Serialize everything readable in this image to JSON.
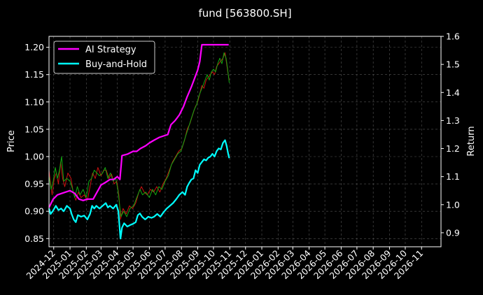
{
  "chart_data": {
    "type": "line",
    "title": "fund [563800.SH]",
    "ylabel_left": "Price",
    "ylabel_right": "Return",
    "ylim_left": [
      0.835,
      1.22
    ],
    "ylim_right": [
      0.85,
      1.6
    ],
    "yticks_left": [
      "0.85",
      "0.90",
      "0.95",
      "1.00",
      "1.05",
      "1.10",
      "1.15",
      "1.20"
    ],
    "yticks_right": [
      "0.9",
      "1.0",
      "1.1",
      "1.2",
      "1.3",
      "1.4",
      "1.5",
      "1.6"
    ],
    "xlim": [
      "2024-11-22",
      "2026-12-08"
    ],
    "xticks": [
      "2024-12",
      "2025-01",
      "2025-02",
      "2025-03",
      "2025-04",
      "2025-05",
      "2025-06",
      "2025-07",
      "2025-08",
      "2025-09",
      "2025-10",
      "2025-11",
      "2025-12",
      "2026-01",
      "2026-02",
      "2026-03",
      "2026-04",
      "2026-05",
      "2026-06",
      "2026-07",
      "2026-08",
      "2026-09",
      "2026-10",
      "2026-11"
    ],
    "grid": true,
    "legend_placement": "top-left",
    "series": [
      {
        "name": "AI Strategy",
        "axis": "right",
        "color": "#ff00ff",
        "points": [
          [
            "2024-11-22",
            0.99
          ],
          [
            "2024-11-30",
            1.02
          ],
          [
            "2024-12-08",
            1.035
          ],
          [
            "2024-12-16",
            1.04
          ],
          [
            "2024-12-24",
            1.045
          ],
          [
            "2025-01-01",
            1.05
          ],
          [
            "2025-01-10",
            1.04
          ],
          [
            "2025-01-18",
            1.02
          ],
          [
            "2025-01-26",
            1.015
          ],
          [
            "2025-02-03",
            1.02
          ],
          [
            "2025-02-14",
            1.02
          ],
          [
            "2025-02-20",
            1.04
          ],
          [
            "2025-03-01",
            1.07
          ],
          [
            "2025-03-10",
            1.08
          ],
          [
            "2025-03-18",
            1.09
          ],
          [
            "2025-03-25",
            1.09
          ],
          [
            "2025-04-01",
            1.1
          ],
          [
            "2025-04-06",
            1.09
          ],
          [
            "2025-04-10",
            1.175
          ],
          [
            "2025-04-20",
            1.18
          ],
          [
            "2025-05-01",
            1.19
          ],
          [
            "2025-05-08",
            1.19
          ],
          [
            "2025-05-15",
            1.2
          ],
          [
            "2025-05-25",
            1.21
          ],
          [
            "2025-06-01",
            1.22
          ],
          [
            "2025-06-10",
            1.23
          ],
          [
            "2025-06-20",
            1.24
          ],
          [
            "2025-06-28",
            1.245
          ],
          [
            "2025-07-06",
            1.25
          ],
          [
            "2025-07-12",
            1.285
          ],
          [
            "2025-07-20",
            1.3
          ],
          [
            "2025-07-28",
            1.32
          ],
          [
            "2025-08-05",
            1.35
          ],
          [
            "2025-08-12",
            1.385
          ],
          [
            "2025-08-20",
            1.42
          ],
          [
            "2025-08-28",
            1.46
          ],
          [
            "2025-09-01",
            1.48
          ],
          [
            "2025-09-05",
            1.51
          ],
          [
            "2025-09-09",
            1.57
          ],
          [
            "2025-09-20",
            1.57
          ],
          [
            "2025-10-01",
            1.57
          ],
          [
            "2025-10-10",
            1.57
          ],
          [
            "2025-10-20",
            1.57
          ],
          [
            "2025-10-30",
            1.57
          ]
        ]
      },
      {
        "name": "Buy-and-Hold",
        "axis": "left",
        "color": "#00ffff",
        "points": [
          [
            "2024-11-22",
            0.905
          ],
          [
            "2024-11-25",
            0.895
          ],
          [
            "2024-11-29",
            0.9
          ],
          [
            "2024-12-05",
            0.91
          ],
          [
            "2024-12-10",
            0.902
          ],
          [
            "2024-12-15",
            0.905
          ],
          [
            "2024-12-20",
            0.9
          ],
          [
            "2024-12-26",
            0.91
          ],
          [
            "2025-01-01",
            0.905
          ],
          [
            "2025-01-04",
            0.895
          ],
          [
            "2025-01-08",
            0.885
          ],
          [
            "2025-01-12",
            0.88
          ],
          [
            "2025-01-16",
            0.893
          ],
          [
            "2025-01-22",
            0.89
          ],
          [
            "2025-01-28",
            0.892
          ],
          [
            "2025-02-03",
            0.885
          ],
          [
            "2025-02-08",
            0.895
          ],
          [
            "2025-02-12",
            0.91
          ],
          [
            "2025-02-16",
            0.905
          ],
          [
            "2025-02-20",
            0.91
          ],
          [
            "2025-02-26",
            0.905
          ],
          [
            "2025-03-04",
            0.91
          ],
          [
            "2025-03-10",
            0.915
          ],
          [
            "2025-03-14",
            0.907
          ],
          [
            "2025-03-18",
            0.91
          ],
          [
            "2025-03-24",
            0.905
          ],
          [
            "2025-03-30",
            0.912
          ],
          [
            "2025-04-03",
            0.9
          ],
          [
            "2025-04-07",
            0.85
          ],
          [
            "2025-04-10",
            0.87
          ],
          [
            "2025-04-14",
            0.878
          ],
          [
            "2025-04-20",
            0.872
          ],
          [
            "2025-04-26",
            0.875
          ],
          [
            "2025-05-01",
            0.877
          ],
          [
            "2025-05-06",
            0.88
          ],
          [
            "2025-05-10",
            0.893
          ],
          [
            "2025-05-14",
            0.896
          ],
          [
            "2025-05-18",
            0.89
          ],
          [
            "2025-05-24",
            0.885
          ],
          [
            "2025-05-30",
            0.89
          ],
          [
            "2025-06-05",
            0.888
          ],
          [
            "2025-06-10",
            0.89
          ],
          [
            "2025-06-16",
            0.895
          ],
          [
            "2025-06-22",
            0.89
          ],
          [
            "2025-06-28",
            0.898
          ],
          [
            "2025-07-04",
            0.905
          ],
          [
            "2025-07-10",
            0.91
          ],
          [
            "2025-07-16",
            0.915
          ],
          [
            "2025-07-22",
            0.922
          ],
          [
            "2025-07-28",
            0.93
          ],
          [
            "2025-08-03",
            0.935
          ],
          [
            "2025-08-08",
            0.93
          ],
          [
            "2025-08-12",
            0.945
          ],
          [
            "2025-08-16",
            0.952
          ],
          [
            "2025-08-20",
            0.958
          ],
          [
            "2025-08-24",
            0.96
          ],
          [
            "2025-08-28",
            0.975
          ],
          [
            "2025-09-01",
            0.97
          ],
          [
            "2025-09-05",
            0.985
          ],
          [
            "2025-09-09",
            0.99
          ],
          [
            "2025-09-13",
            0.995
          ],
          [
            "2025-09-17",
            0.993
          ],
          [
            "2025-09-21",
            0.998
          ],
          [
            "2025-09-25",
            1.0
          ],
          [
            "2025-09-29",
            1.005
          ],
          [
            "2025-10-03",
            1.0
          ],
          [
            "2025-10-07",
            1.01
          ],
          [
            "2025-10-11",
            1.015
          ],
          [
            "2025-10-15",
            1.013
          ],
          [
            "2025-10-19",
            1.025
          ],
          [
            "2025-10-23",
            1.03
          ],
          [
            "2025-10-26",
            1.02
          ],
          [
            "2025-10-29",
            1.005
          ],
          [
            "2025-10-31",
            0.997
          ]
        ]
      },
      {
        "name": "",
        "axis": "left",
        "color": "#cc1111",
        "style": "thin",
        "points": [
          [
            "2024-11-22",
            0.975
          ],
          [
            "2024-11-25",
            0.95
          ],
          [
            "2024-11-28",
            0.93
          ],
          [
            "2024-12-02",
            0.96
          ],
          [
            "2024-12-06",
            0.97
          ],
          [
            "2024-12-10",
            0.95
          ],
          [
            "2024-12-14",
            0.99
          ],
          [
            "2024-12-18",
            0.96
          ],
          [
            "2024-12-22",
            0.945
          ],
          [
            "2024-12-28",
            0.97
          ],
          [
            "2025-01-03",
            0.96
          ],
          [
            "2025-01-07",
            0.935
          ],
          [
            "2025-01-12",
            0.92
          ],
          [
            "2025-01-17",
            0.935
          ],
          [
            "2025-01-22",
            0.925
          ],
          [
            "2025-01-28",
            0.93
          ],
          [
            "2025-02-03",
            0.92
          ],
          [
            "2025-02-08",
            0.945
          ],
          [
            "2025-02-13",
            0.97
          ],
          [
            "2025-02-18",
            0.96
          ],
          [
            "2025-02-23",
            0.98
          ],
          [
            "2025-03-01",
            0.965
          ],
          [
            "2025-03-06",
            0.975
          ],
          [
            "2025-03-11",
            0.975
          ],
          [
            "2025-03-16",
            0.96
          ],
          [
            "2025-03-21",
            0.968
          ],
          [
            "2025-03-26",
            0.95
          ],
          [
            "2025-03-31",
            0.955
          ],
          [
            "2025-04-04",
            0.93
          ],
          [
            "2025-04-07",
            0.885
          ],
          [
            "2025-04-12",
            0.905
          ],
          [
            "2025-04-18",
            0.895
          ],
          [
            "2025-04-24",
            0.91
          ],
          [
            "2025-04-30",
            0.905
          ],
          [
            "2025-05-06",
            0.915
          ],
          [
            "2025-05-12",
            0.935
          ],
          [
            "2025-05-17",
            0.945
          ],
          [
            "2025-05-22",
            0.935
          ],
          [
            "2025-05-28",
            0.93
          ],
          [
            "2025-06-03",
            0.94
          ],
          [
            "2025-06-09",
            0.935
          ],
          [
            "2025-06-15",
            0.945
          ],
          [
            "2025-06-21",
            0.935
          ],
          [
            "2025-06-27",
            0.95
          ],
          [
            "2025-07-03",
            0.96
          ],
          [
            "2025-07-09",
            0.975
          ],
          [
            "2025-07-15",
            0.99
          ],
          [
            "2025-07-21",
            1.0
          ],
          [
            "2025-07-27",
            1.01
          ],
          [
            "2025-08-02",
            1.015
          ],
          [
            "2025-08-07",
            1.03
          ],
          [
            "2025-08-12",
            1.05
          ],
          [
            "2025-08-17",
            1.06
          ],
          [
            "2025-08-22",
            1.075
          ],
          [
            "2025-08-27",
            1.09
          ],
          [
            "2025-09-01",
            1.1
          ],
          [
            "2025-09-05",
            1.115
          ],
          [
            "2025-09-09",
            1.13
          ],
          [
            "2025-09-13",
            1.125
          ],
          [
            "2025-09-17",
            1.14
          ],
          [
            "2025-09-21",
            1.145
          ],
          [
            "2025-09-25",
            1.15
          ],
          [
            "2025-09-29",
            1.155
          ],
          [
            "2025-10-03",
            1.15
          ],
          [
            "2025-10-07",
            1.165
          ],
          [
            "2025-10-11",
            1.17
          ],
          [
            "2025-10-15",
            1.175
          ],
          [
            "2025-10-19",
            1.18
          ],
          [
            "2025-10-23",
            1.19
          ],
          [
            "2025-10-26",
            1.17
          ],
          [
            "2025-10-29",
            1.15
          ],
          [
            "2025-10-31",
            1.14
          ]
        ]
      },
      {
        "name": "",
        "axis": "left",
        "color": "#11aa11",
        "style": "thin",
        "points": [
          [
            "2024-11-22",
            0.965
          ],
          [
            "2024-11-26",
            0.94
          ],
          [
            "2024-11-30",
            0.955
          ],
          [
            "2024-12-04",
            0.98
          ],
          [
            "2024-12-08",
            0.96
          ],
          [
            "2024-12-12",
            0.975
          ],
          [
            "2024-12-16",
            1.0
          ],
          [
            "2024-12-20",
            0.955
          ],
          [
            "2024-12-26",
            0.96
          ],
          [
            "2025-01-01",
            0.955
          ],
          [
            "2025-01-06",
            0.94
          ],
          [
            "2025-01-10",
            0.925
          ],
          [
            "2025-01-15",
            0.945
          ],
          [
            "2025-01-20",
            0.93
          ],
          [
            "2025-01-26",
            0.94
          ],
          [
            "2025-02-01",
            0.925
          ],
          [
            "2025-02-06",
            0.955
          ],
          [
            "2025-02-11",
            0.96
          ],
          [
            "2025-02-16",
            0.975
          ],
          [
            "2025-02-21",
            0.97
          ],
          [
            "2025-02-26",
            0.965
          ],
          [
            "2025-03-04",
            0.97
          ],
          [
            "2025-03-09",
            0.98
          ],
          [
            "2025-03-14",
            0.96
          ],
          [
            "2025-03-19",
            0.97
          ],
          [
            "2025-03-24",
            0.955
          ],
          [
            "2025-03-29",
            0.96
          ],
          [
            "2025-04-02",
            0.94
          ],
          [
            "2025-04-08",
            0.89
          ],
          [
            "2025-04-13",
            0.9
          ],
          [
            "2025-04-19",
            0.89
          ],
          [
            "2025-04-25",
            0.905
          ],
          [
            "2025-05-02",
            0.91
          ],
          [
            "2025-05-08",
            0.925
          ],
          [
            "2025-05-14",
            0.94
          ],
          [
            "2025-05-19",
            0.93
          ],
          [
            "2025-05-25",
            0.935
          ],
          [
            "2025-06-01",
            0.925
          ],
          [
            "2025-06-07",
            0.94
          ],
          [
            "2025-06-13",
            0.93
          ],
          [
            "2025-06-19",
            0.945
          ],
          [
            "2025-06-25",
            0.94
          ],
          [
            "2025-07-01",
            0.955
          ],
          [
            "2025-07-07",
            0.965
          ],
          [
            "2025-07-13",
            0.985
          ],
          [
            "2025-07-19",
            0.995
          ],
          [
            "2025-07-25",
            1.005
          ],
          [
            "2025-07-31",
            1.01
          ],
          [
            "2025-08-05",
            1.025
          ],
          [
            "2025-08-10",
            1.04
          ],
          [
            "2025-08-15",
            1.055
          ],
          [
            "2025-08-20",
            1.07
          ],
          [
            "2025-08-25",
            1.085
          ],
          [
            "2025-08-30",
            1.095
          ],
          [
            "2025-09-03",
            1.11
          ],
          [
            "2025-09-07",
            1.12
          ],
          [
            "2025-09-11",
            1.13
          ],
          [
            "2025-09-15",
            1.14
          ],
          [
            "2025-09-19",
            1.15
          ],
          [
            "2025-09-23",
            1.14
          ],
          [
            "2025-09-27",
            1.155
          ],
          [
            "2025-10-01",
            1.16
          ],
          [
            "2025-10-05",
            1.155
          ],
          [
            "2025-10-09",
            1.17
          ],
          [
            "2025-10-13",
            1.18
          ],
          [
            "2025-10-17",
            1.17
          ],
          [
            "2025-10-21",
            1.19
          ],
          [
            "2025-10-25",
            1.18
          ],
          [
            "2025-10-28",
            1.16
          ],
          [
            "2025-10-31",
            1.135
          ]
        ]
      }
    ]
  }
}
